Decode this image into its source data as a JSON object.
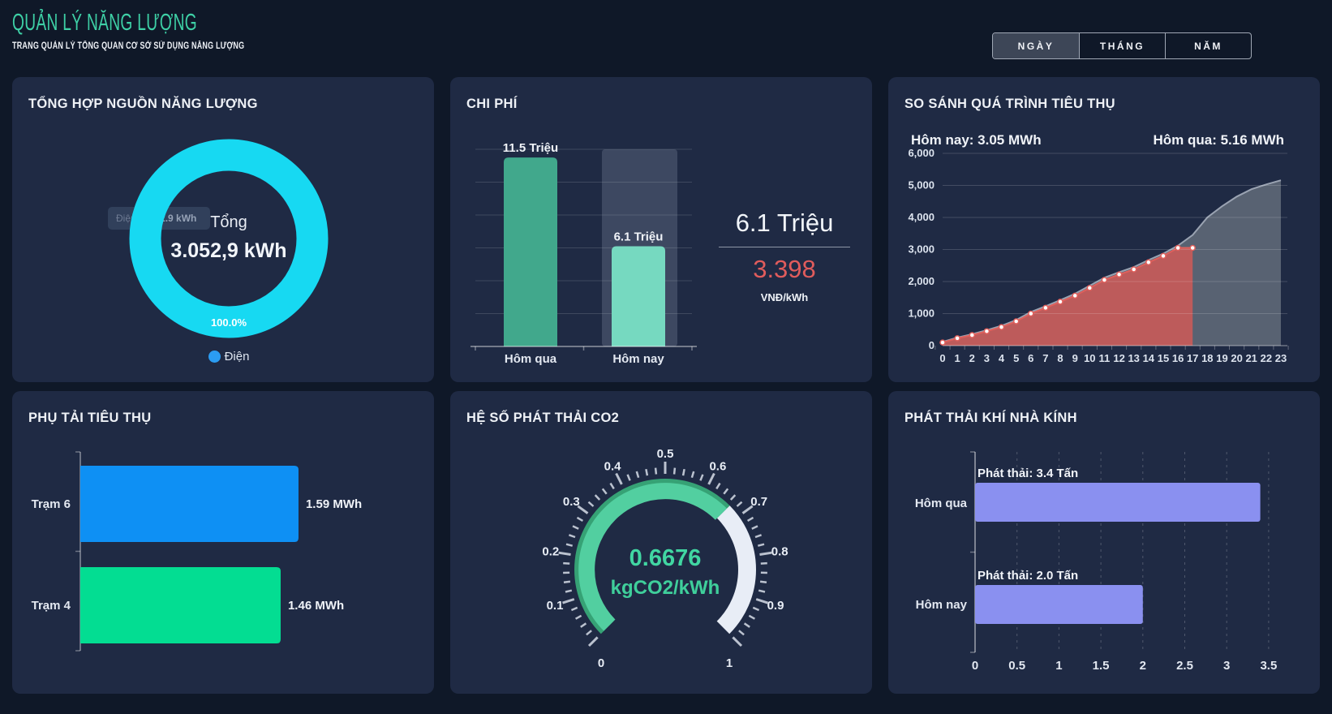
{
  "header": {
    "title": "QUẢN LÝ NĂNG LƯỢNG",
    "subtitle": "TRANG QUẢN LÝ TỔNG QUAN CƠ SỞ SỬ DỤNG NĂNG LƯỢNG",
    "title_color": "#3ed0a6",
    "range_buttons": [
      {
        "label": "NGÀY",
        "active": true
      },
      {
        "label": "THÁNG",
        "active": false
      },
      {
        "label": "NĂM",
        "active": false
      }
    ]
  },
  "panels": {
    "energy_summary": {
      "title": "TỔNG HỢP NGUỒN NĂNG LƯỢNG",
      "center_label": "Tổng",
      "center_value": "3.052,9 kWh",
      "legend_label": "Điện",
      "legend_color": "#2b9cf2",
      "tooltip_label": "Điện:",
      "tooltip_value": "3052.9 kWh"
    },
    "cost": {
      "title": "CHI PHÍ",
      "summary_value": "6.1 Triệu",
      "summary_rate": "3.398",
      "summary_unit": "VNĐ/kWh",
      "rate_color": "#e05c5c"
    },
    "comparison": {
      "title": "SO SÁNH QUÁ TRÌNH TIÊU THỤ",
      "today_label": "Hôm nay: 3.05 MWh",
      "yesterday_label": "Hôm qua: 5.16 MWh"
    },
    "load": {
      "title": "PHỤ TẢI TIÊU THỤ"
    },
    "co2": {
      "title": "HỆ SỐ PHÁT THẢI CO2"
    },
    "ghg": {
      "title": "PHÁT THẢI KHÍ NHÀ KÍNH"
    }
  },
  "chart_data": [
    {
      "id": "energy_donut",
      "type": "pie",
      "title": "TỔNG HỢP NGUỒN NĂNG LƯỢNG",
      "slices": [
        {
          "label": "Điện",
          "value": 3052.9,
          "unit": "kWh",
          "percent_label": "100.0%",
          "color": "#17d9f2"
        }
      ],
      "center": {
        "label": "Tổng",
        "value": "3.052,9 kWh"
      },
      "legend_position": "bottom"
    },
    {
      "id": "cost_bars",
      "type": "bar",
      "title": "CHI PHÍ",
      "categories": [
        "Hôm qua",
        "Hôm nay"
      ],
      "values": [
        11.5,
        6.1
      ],
      "value_labels": [
        "11.5 Triệu",
        "6.1 Triệu"
      ],
      "bar_colors": [
        "#41a88c",
        "#76d9c0"
      ],
      "ylim": [
        0,
        12
      ],
      "grid_step": 2,
      "grid": true,
      "highlight_index": 1,
      "unit": "Triệu"
    },
    {
      "id": "consumption_area",
      "type": "area",
      "title": "SO SÁNH QUÁ TRÌNH TIÊU THỤ",
      "x": [
        0,
        1,
        2,
        3,
        4,
        5,
        6,
        7,
        8,
        9,
        10,
        11,
        12,
        13,
        14,
        15,
        16,
        17,
        18,
        19,
        20,
        21,
        22,
        23
      ],
      "xlabel": "",
      "ylabel": "",
      "ylim": [
        0,
        6000
      ],
      "ytick_step": 1000,
      "grid": true,
      "legend_position": "none",
      "series": [
        {
          "name": "Hôm qua",
          "total_label": "Hôm qua: 5.16 MWh",
          "line_color": "#9aa3b2",
          "fill_color": "#636c7a",
          "fill_opacity": 0.85,
          "markers": false,
          "values": [
            120,
            250,
            360,
            480,
            620,
            800,
            1050,
            1230,
            1420,
            1620,
            1870,
            2120,
            2290,
            2450,
            2670,
            2870,
            3120,
            3450,
            4000,
            4350,
            4650,
            4880,
            5030,
            5160
          ]
        },
        {
          "name": "Hôm nay",
          "total_label": "Hôm nay: 3.05 MWh",
          "line_color": "#e0605c",
          "fill_color": "#cb5a58",
          "fill_opacity": 0.88,
          "markers": true,
          "values": [
            100,
            230,
            330,
            450,
            580,
            760,
            1000,
            1180,
            1370,
            1560,
            1800,
            2050,
            2220,
            2380,
            2600,
            2800,
            3050,
            3050
          ]
        }
      ]
    },
    {
      "id": "load_bars",
      "type": "hbar",
      "title": "PHỤ TẢI TIÊU THỤ",
      "categories": [
        "Trạm 6",
        "Trạm 4"
      ],
      "values": [
        1.59,
        1.46
      ],
      "value_labels": [
        "1.59 MWh",
        "1.46 MWh"
      ],
      "colors": [
        "#0e90f4",
        "#03dd92"
      ],
      "xmax": 2.4,
      "grid": false
    },
    {
      "id": "co2_gauge",
      "type": "gauge",
      "title": "HỆ SỐ PHÁT THẢI CO2",
      "min": 0,
      "max": 1,
      "value": 0.6676,
      "value_label": "0.6676",
      "unit": "kgCO2/kWh",
      "major_tick_step": 0.1,
      "minor_ticks_per_major": 5,
      "colors": {
        "progress": "#52cfa0",
        "rim": "#36a275",
        "rest": "#e8edf6",
        "tick": "#ccd3df"
      }
    },
    {
      "id": "ghg_bars",
      "type": "hbar",
      "title": "PHÁT THẢI KHÍ NHÀ KÍNH",
      "categories": [
        "Hôm qua",
        "Hôm nay"
      ],
      "values": [
        3.4,
        2.0
      ],
      "value_labels": [
        "Phát thải: 3.4 Tấn",
        "Phát thải: 2.0 Tấn"
      ],
      "colors": [
        "#8a90f0",
        "#8a90f0"
      ],
      "xticks": [
        0,
        0.5,
        1,
        1.5,
        2,
        2.5,
        3,
        3.5
      ],
      "xmax": 3.5,
      "grid": true,
      "grid_style": "dashed"
    }
  ]
}
